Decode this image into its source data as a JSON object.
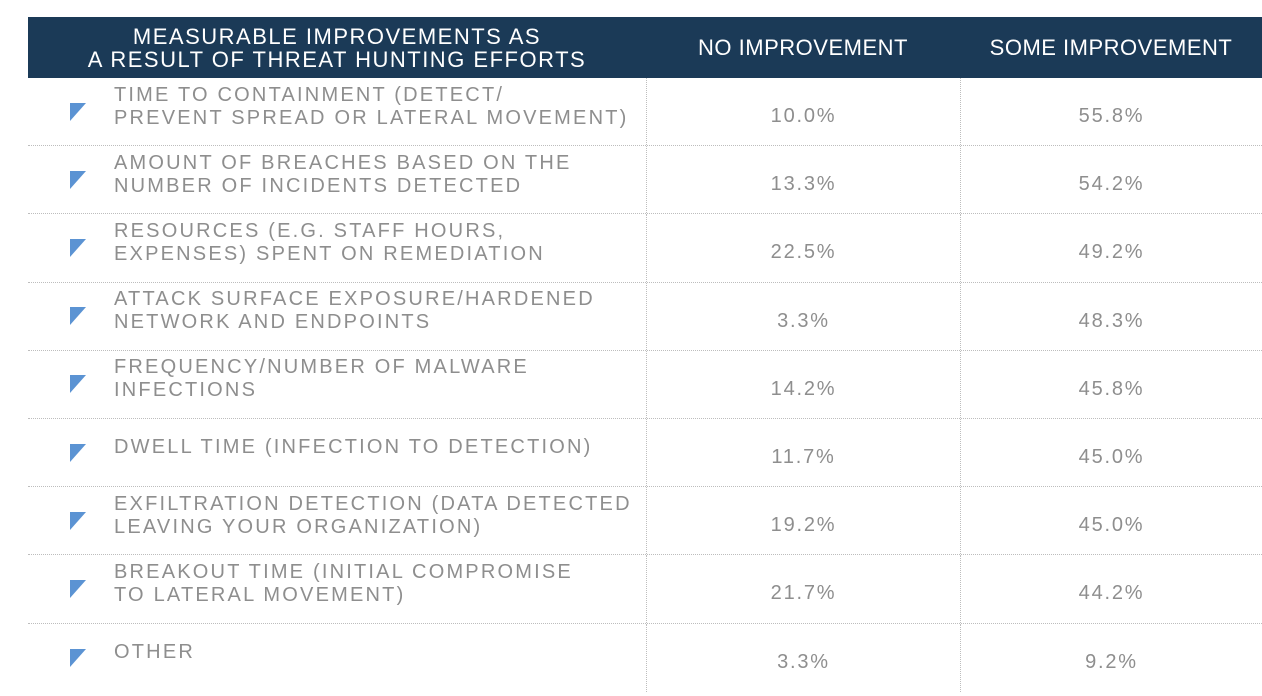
{
  "chart_data": {
    "type": "table",
    "columns": [
      "MEASURABLE IMPROVEMENTS AS\nA RESULT OF THREAT HUNTING EFFORTS",
      "NO IMPROVEMENT",
      "SOME IMPROVEMENT"
    ],
    "rows": [
      {
        "label": "TIME TO CONTAINMENT (DETECT/\nPREVENT SPREAD OR LATERAL MOVEMENT)",
        "no_improvement": "10.0%",
        "some_improvement": "55.8%"
      },
      {
        "label": "AMOUNT OF BREACHES BASED ON THE\nNUMBER OF INCIDENTS DETECTED",
        "no_improvement": "13.3%",
        "some_improvement": "54.2%"
      },
      {
        "label": "RESOURCES (E.G. STAFF HOURS,\nEXPENSES) SPENT ON REMEDIATION",
        "no_improvement": "22.5%",
        "some_improvement": "49.2%"
      },
      {
        "label": "ATTACK SURFACE EXPOSURE/HARDENED\nNETWORK AND ENDPOINTS",
        "no_improvement": "3.3%",
        "some_improvement": "48.3%"
      },
      {
        "label": "FREQUENCY/NUMBER OF MALWARE\nINFECTIONS",
        "no_improvement": "14.2%",
        "some_improvement": "45.8%"
      },
      {
        "label": "DWELL TIME (INFECTION TO DETECTION)",
        "no_improvement": "11.7%",
        "some_improvement": "45.0%"
      },
      {
        "label": "EXFILTRATION DETECTION (DATA DETECTED\nLEAVING YOUR ORGANIZATION)",
        "no_improvement": "19.2%",
        "some_improvement": "45.0%"
      },
      {
        "label": "BREAKOUT TIME (INITIAL COMPROMISE\nTO LATERAL MOVEMENT)",
        "no_improvement": "21.7%",
        "some_improvement": "44.2%"
      },
      {
        "label": "OTHER",
        "no_improvement": "3.3%",
        "some_improvement": "9.2%"
      }
    ]
  },
  "colors": {
    "header_bg": "#1b3a57",
    "header_text": "#ffffff",
    "body_text": "#8e8e8e",
    "marker": "#5b93d3",
    "divider": "#bdbdbd"
  },
  "icons": {
    "row_marker": "corner-triangle-icon"
  }
}
